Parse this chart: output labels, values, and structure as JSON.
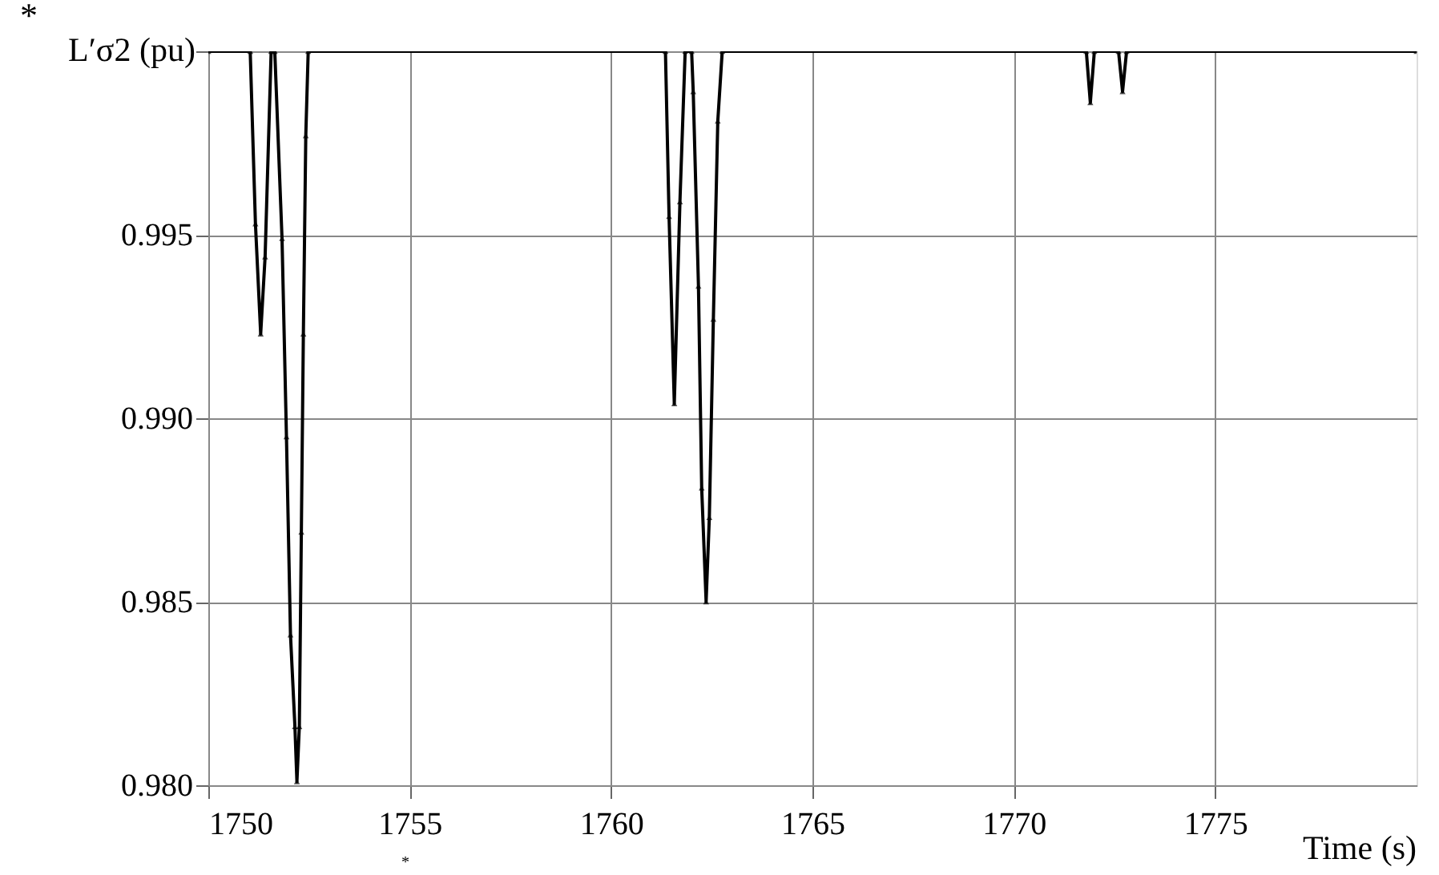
{
  "chart_data": {
    "type": "line",
    "xlabel": "Time (s)",
    "ylabel": "L′σ2 (pu)",
    "annotations": [
      "*",
      "*"
    ],
    "x": [
      1750,
      1751.04,
      1751.17,
      1751.3,
      1751.41,
      1751.56,
      1751.65,
      1751.83,
      1751.94,
      1752.04,
      1752.15,
      1752.2,
      1752.26,
      1752.31,
      1752.36,
      1752.42,
      1752.48,
      1761.35,
      1761.44,
      1761.57,
      1761.71,
      1761.84,
      1762.0,
      1762.04,
      1762.17,
      1762.25,
      1762.36,
      1762.44,
      1762.54,
      1762.65,
      1762.76,
      1771.8,
      1771.9,
      1772.0,
      1772.6,
      1772.7,
      1772.8,
      1780
    ],
    "series": [
      {
        "color": "#000000",
        "values": [
          1.0,
          1.0,
          0.9953,
          0.9923,
          0.9944,
          1.0,
          1.0,
          0.9949,
          0.9895,
          0.9841,
          0.9816,
          0.9801,
          0.9816,
          0.9869,
          0.9923,
          0.9977,
          1.0,
          1.0,
          0.9955,
          0.9904,
          0.9959,
          1.0,
          1.0,
          0.9989,
          0.9936,
          0.9881,
          0.985,
          0.9873,
          0.9927,
          0.9981,
          1.0,
          1.0,
          0.9986,
          1.0,
          1.0,
          0.9989,
          1.0,
          1.0
        ]
      }
    ],
    "xlim": [
      1750,
      1780
    ],
    "xticks": [
      1750,
      1755,
      1760,
      1765,
      1770,
      1775
    ],
    "ylim": [
      0.98,
      1.0
    ],
    "yticks": [
      {
        "value": 0.98,
        "label": "0.980"
      },
      0.985,
      {
        "value": 0.99,
        "label": "0.990"
      },
      0.995,
      {
        "value": 1.0,
        "label": null
      }
    ],
    "grid": true,
    "marker": "triangle",
    "line_style": "solid"
  }
}
